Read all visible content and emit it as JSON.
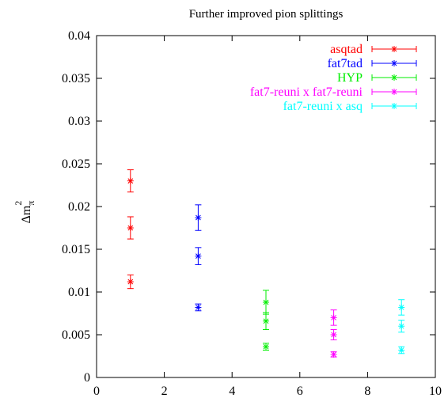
{
  "chart_data": {
    "type": "scatter",
    "title": "Further improved pion splittings",
    "ylabel_base": "Δm",
    "ylabel_sub": "π",
    "ylabel_sup": "2",
    "xlim": [
      0,
      10
    ],
    "ylim": [
      0,
      0.04
    ],
    "x_ticks": [
      "0",
      "2",
      "4",
      "6",
      "8",
      "10"
    ],
    "y_ticks": [
      "0",
      "0.005",
      "0.01",
      "0.015",
      "0.02",
      "0.025",
      "0.03",
      "0.035",
      "0.04"
    ],
    "legend_placement": "top-right",
    "grid": false,
    "series": [
      {
        "name": "asqtad",
        "color": "#ff0000",
        "points": [
          {
            "x": 1,
            "y": 0.023,
            "err": 0.0013
          },
          {
            "x": 1,
            "y": 0.0175,
            "err": 0.0013
          },
          {
            "x": 1,
            "y": 0.0112,
            "err": 0.0008
          }
        ]
      },
      {
        "name": "fat7tad",
        "color": "#0000ff",
        "points": [
          {
            "x": 3,
            "y": 0.0187,
            "err": 0.0015
          },
          {
            "x": 3,
            "y": 0.0142,
            "err": 0.001
          },
          {
            "x": 3,
            "y": 0.0082,
            "err": 0.0004
          }
        ]
      },
      {
        "name": "HYP",
        "color": "#00ee00",
        "points": [
          {
            "x": 5,
            "y": 0.0088,
            "err": 0.0014
          },
          {
            "x": 5,
            "y": 0.0066,
            "err": 0.001
          },
          {
            "x": 5,
            "y": 0.0036,
            "err": 0.0004
          }
        ]
      },
      {
        "name": "fat7-reuni x fat7-reuni",
        "color": "#ff00ff",
        "points": [
          {
            "x": 7,
            "y": 0.007,
            "err": 0.0009
          },
          {
            "x": 7,
            "y": 0.005,
            "err": 0.0006
          },
          {
            "x": 7,
            "y": 0.0027,
            "err": 0.0003
          }
        ]
      },
      {
        "name": "fat7-reuni x asq",
        "color": "#00ffff",
        "points": [
          {
            "x": 9,
            "y": 0.0082,
            "err": 0.0009
          },
          {
            "x": 9,
            "y": 0.006,
            "err": 0.0007
          },
          {
            "x": 9,
            "y": 0.0032,
            "err": 0.0004
          }
        ]
      }
    ]
  }
}
